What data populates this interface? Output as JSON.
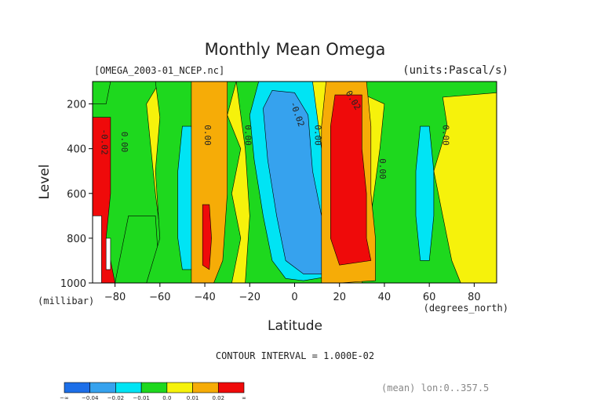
{
  "chart_data": {
    "type": "heatmap",
    "title": "Monthly Mean Omega",
    "file_label": "[OMEGA_2003-01_NCEP.nc]",
    "units_label": "(units:Pascal/s)",
    "xlabel": "Latitude",
    "x_unit_label": "(degrees_north)",
    "ylabel": "Level",
    "y_unit_label": "(millibar)",
    "xlim": [
      -90,
      90
    ],
    "ylim": [
      1000,
      100
    ],
    "x_ticks": [
      -80,
      -60,
      -40,
      -20,
      0,
      20,
      40,
      60,
      80
    ],
    "y_ticks": [
      200,
      400,
      600,
      800,
      1000
    ],
    "contour_interval_label": "CONTOUR INTERVAL = 1.000E-02",
    "mean_label": "(mean) lon:0..357.5",
    "contour_labels": [
      {
        "text": "-0.02",
        "lat": -86,
        "level": 370,
        "rotate": 90
      },
      {
        "text": "0.00",
        "lat": -77,
        "level": 370,
        "rotate": 90
      },
      {
        "text": "0.00",
        "lat": -40,
        "level": 340,
        "rotate": 90
      },
      {
        "text": "0.00",
        "lat": -22,
        "level": 340,
        "rotate": 90
      },
      {
        "text": "-0.02",
        "lat": 0,
        "level": 250,
        "rotate": 70
      },
      {
        "text": "0.00",
        "lat": 9,
        "level": 340,
        "rotate": 90
      },
      {
        "text": "0.02",
        "lat": 25,
        "level": 190,
        "rotate": 60
      },
      {
        "text": "0.00",
        "lat": 38,
        "level": 490,
        "rotate": 90
      },
      {
        "text": "0.00",
        "lat": 66,
        "level": 340,
        "rotate": 90
      }
    ],
    "colorbar": {
      "colors": [
        "#1d6fe8",
        "#36a2ee",
        "#00e4f4",
        "#1ed81e",
        "#f6f20b",
        "#f6ac07",
        "#ef0a0a"
      ],
      "tick_labels": [
        "-∞",
        "-0.04",
        "-0.02",
        "-0.01",
        "0.0",
        "0.01",
        "0.02",
        "∞"
      ]
    },
    "regions": [
      {
        "level": "positive",
        "color": "#f6f20b",
        "lat": [
          -90,
          90
        ],
        "lev": [
          100,
          1000
        ]
      },
      {
        "level": "slightly_negative",
        "color": "#1ed81e",
        "desc": "green bands"
      },
      {
        "level": "negative",
        "color": "#00e4f4",
        "desc": "cyan cores near -48, -5, 58"
      },
      {
        "level": "strong_negative",
        "color": "#36a2ee",
        "desc": "blue core near 0 lat"
      },
      {
        "level": "slightly_positive",
        "color": "#f6ac07",
        "desc": "orange bands near -40, 22"
      },
      {
        "level": "strong_positive",
        "color": "#ef0a0a",
        "desc": "red cores near -88, 22"
      }
    ]
  }
}
